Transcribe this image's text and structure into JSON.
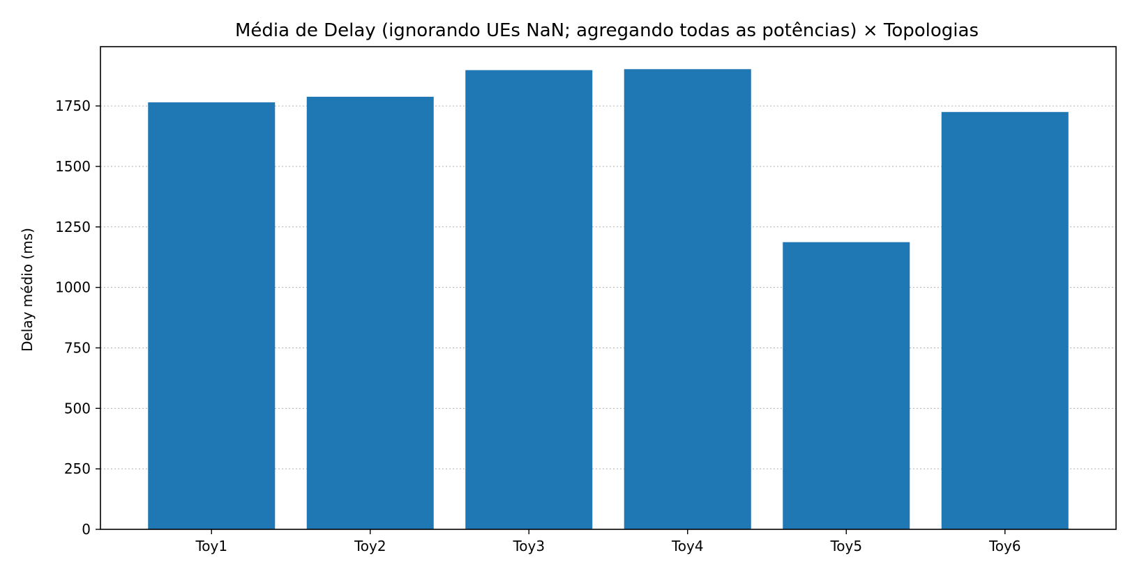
{
  "chart_data": {
    "type": "bar",
    "title": "Média de Delay (ignorando UEs NaN; agregando todas as potências) × Topologias",
    "xlabel": "",
    "ylabel": "Delay médio (ms)",
    "categories": [
      "Toy1",
      "Toy2",
      "Toy3",
      "Toy4",
      "Toy5",
      "Toy6"
    ],
    "values": [
      1765,
      1788,
      1898,
      1902,
      1187,
      1725
    ],
    "ylim": [
      0,
      1995
    ],
    "yticks": [
      0,
      250,
      500,
      750,
      1000,
      1250,
      1500,
      1750
    ],
    "grid": "y-dotted",
    "bar_color": "#1f77b4"
  }
}
